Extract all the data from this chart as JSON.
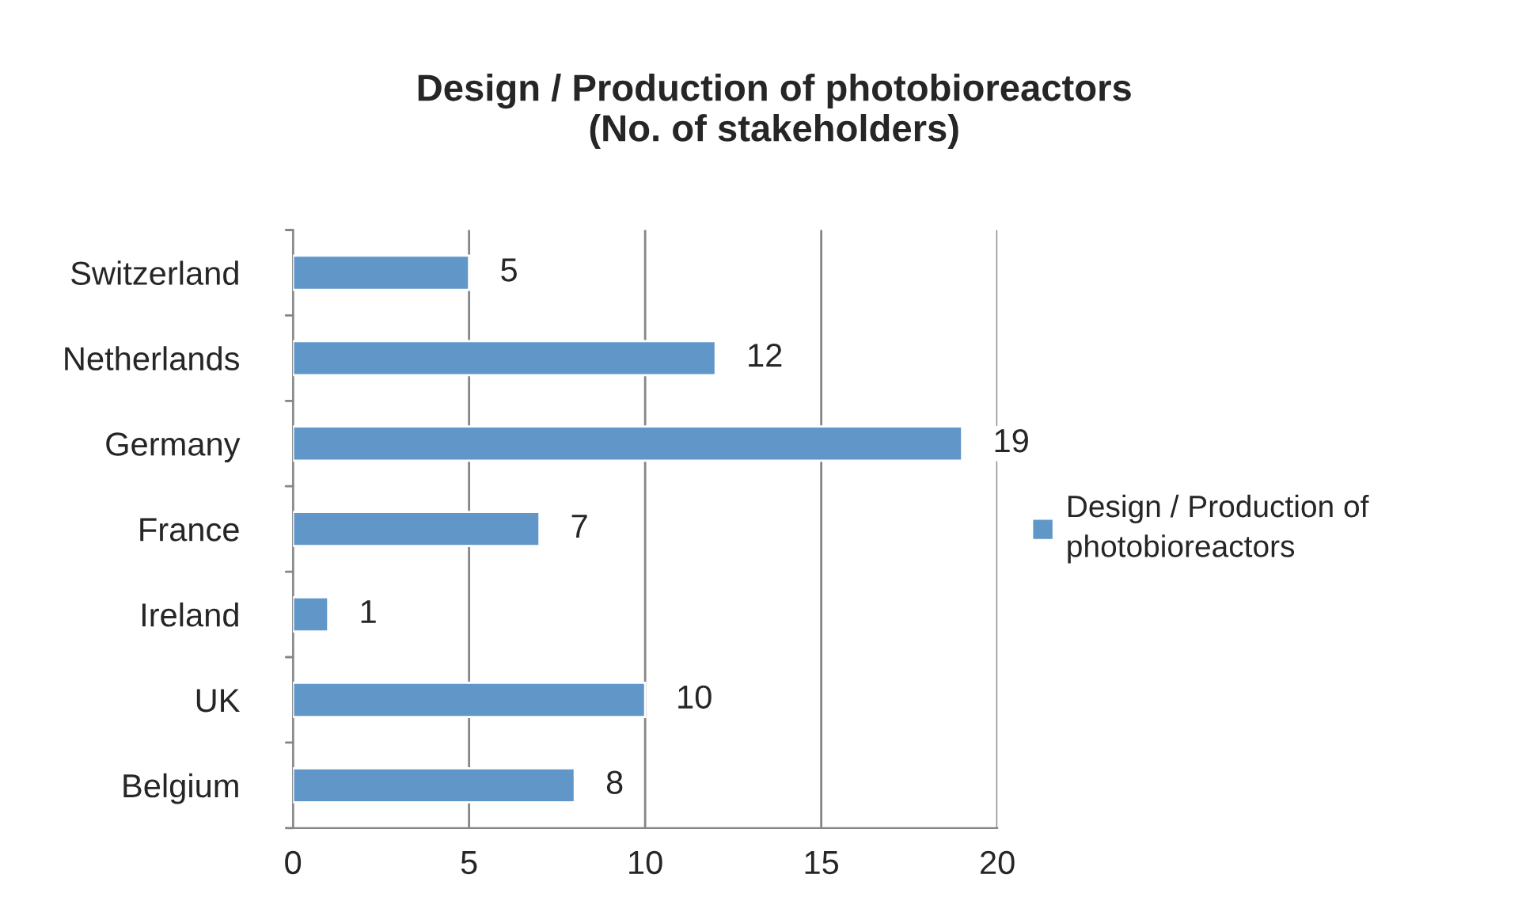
{
  "chart_data": {
    "type": "bar",
    "orientation": "horizontal",
    "title": "Design / Production of photobioreactors\n(No. of stakeholders)",
    "categories": [
      "Switzerland",
      "Netherlands",
      "Germany",
      "France",
      "Ireland",
      "UK",
      "Belgium"
    ],
    "series": [
      {
        "name": "Design / Production of photobioreactors",
        "color": "#6096c8",
        "values": [
          5,
          12,
          19,
          7,
          1,
          10,
          8
        ]
      }
    ],
    "xlim": [
      0,
      20
    ],
    "xticks": [
      0,
      5,
      10,
      15,
      20
    ],
    "grid": "x",
    "legend": "right",
    "data_labels": true
  }
}
